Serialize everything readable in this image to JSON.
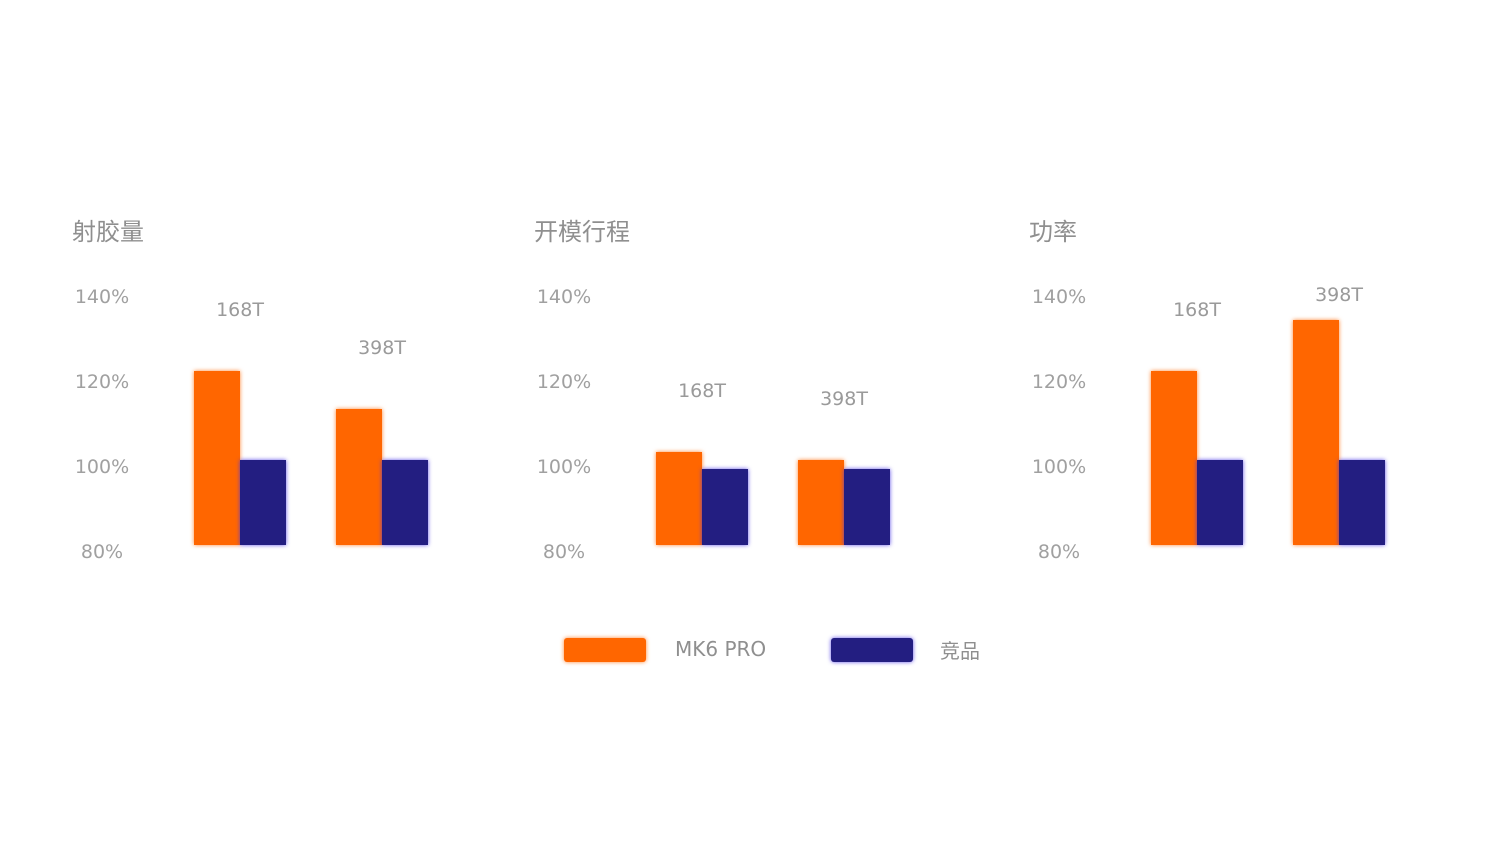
{
  "colors": {
    "mk6": "#ff6600",
    "competitor": "#231e81"
  },
  "legend": {
    "mk6_label": "MK6 PRO",
    "competitor_label": "竞品"
  },
  "chart_data": [
    {
      "type": "bar",
      "title": "射胶量",
      "categories": [
        "168T",
        "398T"
      ],
      "series": [
        {
          "name": "MK6 PRO",
          "values": [
            121,
            112
          ]
        },
        {
          "name": "竞品",
          "values": [
            100,
            100
          ]
        }
      ],
      "yticks": [
        "140%",
        "120%",
        "100%",
        "80%"
      ],
      "ylim": [
        80,
        140
      ]
    },
    {
      "type": "bar",
      "title": "开模行程",
      "categories": [
        "168T",
        "398T"
      ],
      "series": [
        {
          "name": "MK6 PRO",
          "values": [
            102,
            100
          ]
        },
        {
          "name": "竞品",
          "values": [
            98,
            98
          ]
        }
      ],
      "yticks": [
        "140%",
        "120%",
        "100%",
        "80%"
      ],
      "ylim": [
        80,
        140
      ]
    },
    {
      "type": "bar",
      "title": "功率",
      "categories": [
        "168T",
        "398T"
      ],
      "series": [
        {
          "name": "MK6 PRO",
          "values": [
            121,
            133
          ]
        },
        {
          "name": "竞品",
          "values": [
            100,
            100
          ]
        }
      ],
      "yticks": [
        "140%",
        "120%",
        "100%",
        "80%"
      ],
      "ylim": [
        80,
        140
      ]
    }
  ]
}
